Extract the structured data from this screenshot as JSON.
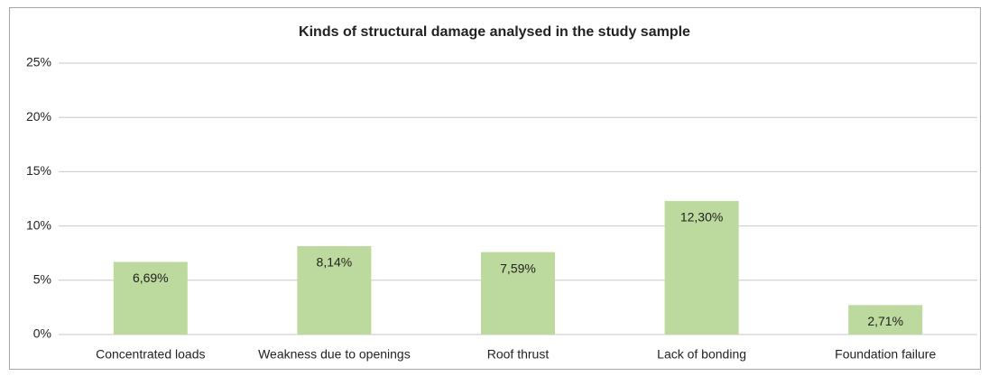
{
  "chart_data": {
    "type": "bar",
    "title": "Kinds of structural damage analysed in the study sample",
    "categories": [
      "Concentrated loads",
      "Weakness due to openings",
      "Roof thrust",
      "Lack of bonding",
      "Foundation failure"
    ],
    "values": [
      6.69,
      8.14,
      7.59,
      12.3,
      2.71
    ],
    "value_labels": [
      "6,69%",
      "8,14%",
      "7,59%",
      "12,30%",
      "2,71%"
    ],
    "color": "#bcd99e",
    "ylim": [
      0,
      25
    ],
    "yticks": [
      {
        "value": 0,
        "label": "0%"
      },
      {
        "value": 5,
        "label": "5%"
      },
      {
        "value": 10,
        "label": "10%"
      },
      {
        "value": 15,
        "label": "15%"
      },
      {
        "value": 20,
        "label": "20%"
      },
      {
        "value": 25,
        "label": "25%"
      }
    ],
    "grid": true
  }
}
